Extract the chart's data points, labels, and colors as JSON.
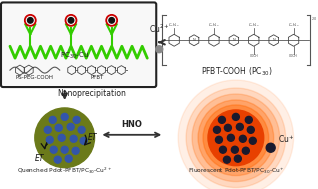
{
  "bg_color": "#ffffff",
  "box_edge_color": "#222222",
  "box_face_color": "#f8f8f8",
  "green_color": "#33cc00",
  "olive_color": "#6b7a1a",
  "orange_core_color": "#e84000",
  "orange_glow_color": "#ff6600",
  "dark_dot_color": "#1a1a2e",
  "blue_dot_color": "#3355aa",
  "arrow_color": "#333333",
  "text_color": "#222222",
  "gray_color": "#555555",
  "red_circle_color": "#cc0000",
  "label_nano": "Nanoprecipitation",
  "label_hno": "HNO",
  "label_et": "ET",
  "label_cu2": "Cu$^{2+}$",
  "label_cu_plus": "Cu$^{+}$",
  "label_pc30cu": "PC$_{30}$-Cu",
  "label_pfbt_cooh": "PFBT-COOH (PC$_{30}$)",
  "label_ps_peg": "PS-PEG-COOH",
  "label_pfbt": "PFBT",
  "label_quenched": "Quenched Pdot-PFBT/PC$_{30}$-Cu$^{2+}$",
  "label_fluorescent": "Fluorescent Pdot-PFBT/PC$_{30}$-Cu$^{+}$"
}
